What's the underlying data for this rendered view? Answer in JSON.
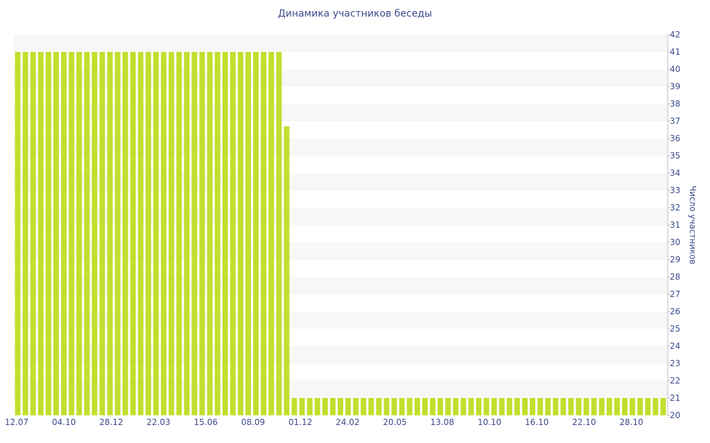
{
  "chart_data": {
    "type": "bar",
    "title": "Динамика участников беседы",
    "ylabel": "Число участников",
    "xlabel": "",
    "ylim": [
      20,
      42
    ],
    "yticks": [
      20,
      21,
      22,
      23,
      24,
      25,
      26,
      27,
      28,
      29,
      30,
      31,
      32,
      33,
      34,
      35,
      36,
      37,
      38,
      39,
      40,
      41,
      42
    ],
    "xtick_labels": [
      "12.07",
      "04.10",
      "28.12",
      "22.03",
      "15.06",
      "08.09",
      "01.12",
      "24.02",
      "20.05",
      "13.08",
      "10.10",
      "16.10",
      "22.10",
      "28.10"
    ],
    "series": [
      {
        "values": [
          41,
          41,
          41,
          41,
          41,
          41,
          41,
          41,
          41,
          41,
          41,
          41,
          41,
          41,
          41,
          41,
          41,
          41,
          41,
          41,
          41,
          41,
          41,
          41,
          41,
          41,
          41,
          41,
          41,
          41,
          41,
          41,
          41,
          41,
          41,
          36.7,
          21,
          21,
          21,
          21,
          21,
          21,
          21,
          21,
          21,
          21,
          21,
          21,
          21,
          21,
          21,
          21,
          21,
          21,
          21,
          21,
          21,
          21,
          21,
          21,
          21,
          21,
          21,
          21,
          21,
          21,
          21,
          21,
          21,
          21,
          21,
          21,
          21,
          21,
          21,
          21,
          21,
          21,
          21,
          21,
          21,
          21,
          21,
          21,
          21
        ]
      }
    ],
    "bar_color": "#c1df2e",
    "band_color": "#f7f7f7",
    "text_color": "#3c4a8c",
    "y_axis_position": "right",
    "grid": "alternating-bands"
  }
}
